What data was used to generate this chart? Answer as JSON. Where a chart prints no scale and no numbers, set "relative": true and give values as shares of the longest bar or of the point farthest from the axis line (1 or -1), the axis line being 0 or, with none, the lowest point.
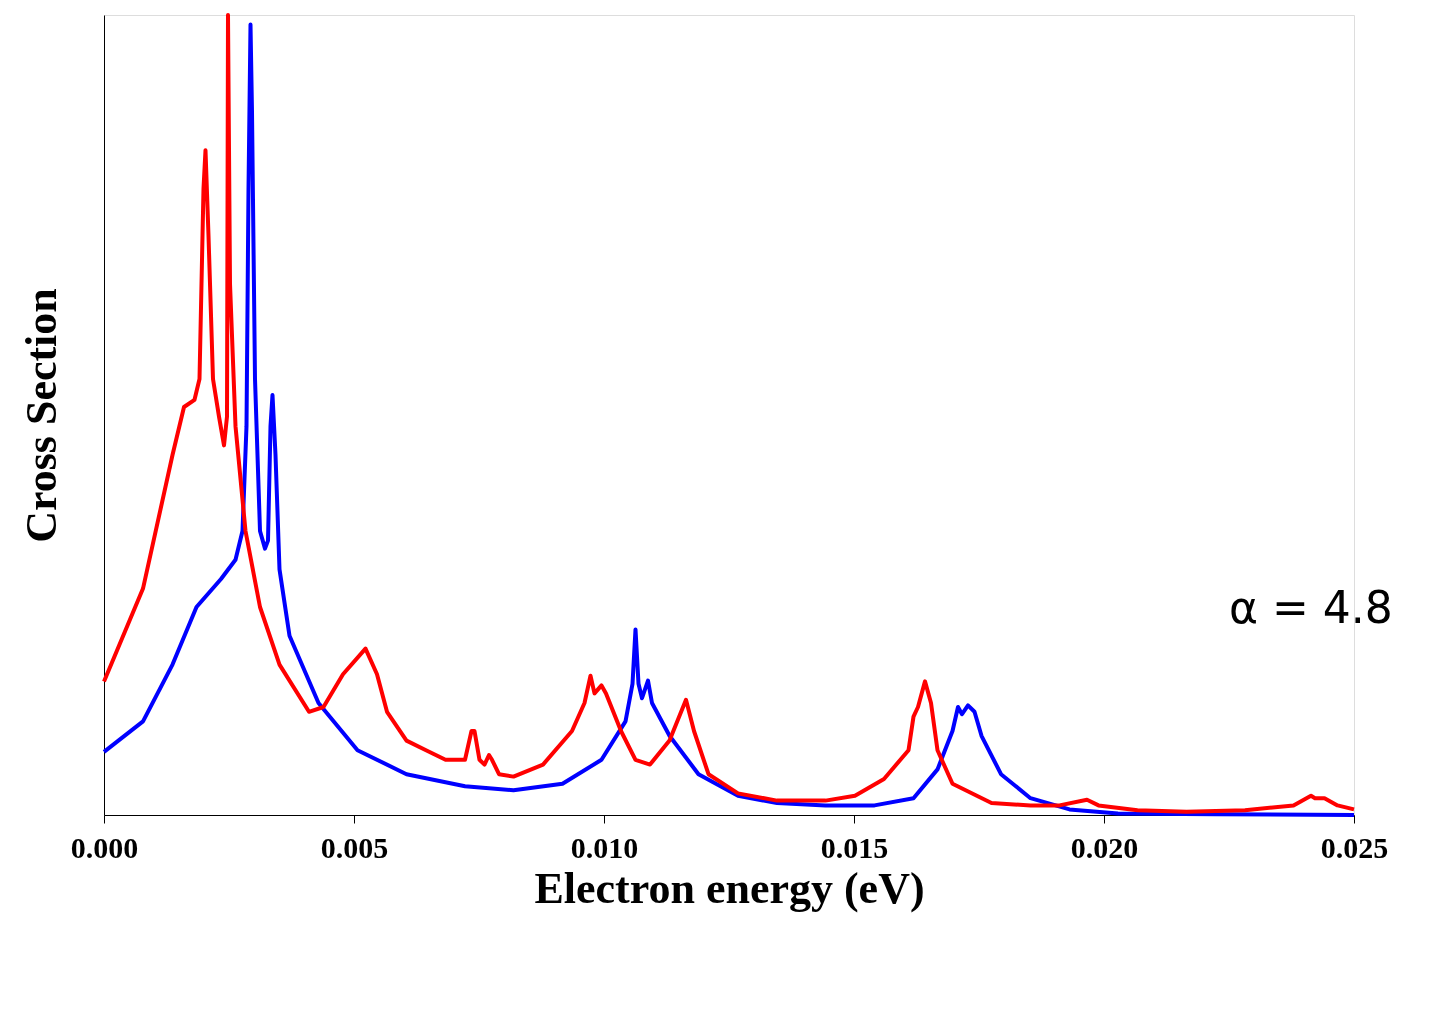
{
  "chart_data": {
    "type": "line",
    "relative": true,
    "xlabel": "Electron energy (eV)",
    "ylabel": "Cross Section",
    "xlim": [
      0,
      0.025
    ],
    "xticks": [
      {
        "value": 0,
        "label": "0.000"
      },
      {
        "value": 0.005,
        "label": "0.005"
      },
      {
        "value": 0.01,
        "label": "0.010"
      },
      {
        "value": 0.015,
        "label": "0.015"
      },
      {
        "value": 0.02,
        "label": "0.020"
      },
      {
        "value": 0.025,
        "label": "0.025"
      }
    ],
    "grid": false,
    "marker": "none",
    "line_style": "solid",
    "annotations": [
      "α = 4.8"
    ],
    "series": [
      {
        "color": "#0000ff",
        "x": [
          0,
          0.00078,
          0.00137,
          0.00185,
          0.00234,
          0.00263,
          0.00277,
          0.00285,
          0.00289,
          0.00293,
          0.00296,
          0.00302,
          0.00312,
          0.00322,
          0.00328,
          0.00333,
          0.00337,
          0.00343,
          0.00351,
          0.00371,
          0.00429,
          0.00507,
          0.00605,
          0.00722,
          0.00819,
          0.00917,
          0.00995,
          0.01043,
          0.01057,
          0.01063,
          0.01069,
          0.01076,
          0.01088,
          0.01096,
          0.01131,
          0.01189,
          0.01268,
          0.01346,
          0.01443,
          0.01541,
          0.01619,
          0.01667,
          0.01697,
          0.01708,
          0.01716,
          0.01728,
          0.01741,
          0.01755,
          0.01794,
          0.01853,
          0.01931,
          0.02028,
          0.02223,
          0.025
        ],
        "values": [
          0.079,
          0.117,
          0.188,
          0.26,
          0.295,
          0.319,
          0.355,
          0.486,
          0.783,
          0.988,
          0.879,
          0.545,
          0.355,
          0.333,
          0.343,
          0.486,
          0.525,
          0.45,
          0.307,
          0.224,
          0.14,
          0.081,
          0.051,
          0.036,
          0.031,
          0.039,
          0.069,
          0.117,
          0.164,
          0.232,
          0.164,
          0.146,
          0.168,
          0.14,
          0.099,
          0.051,
          0.024,
          0.015,
          0.012,
          0.012,
          0.021,
          0.057,
          0.105,
          0.135,
          0.126,
          0.137,
          0.129,
          0.099,
          0.051,
          0.021,
          0.007,
          0.002,
          0.001,
          0
        ]
      },
      {
        "color": "#ff0000",
        "x": [
          0,
          0.00078,
          0.00137,
          0.0016,
          0.00181,
          0.00191,
          0.00199,
          0.00203,
          0.00209,
          0.00218,
          0.0023,
          0.0024,
          0.00246,
          0.00248,
          0.00252,
          0.00263,
          0.00283,
          0.00312,
          0.00351,
          0.0041,
          0.00439,
          0.00478,
          0.00523,
          0.00546,
          0.00566,
          0.00605,
          0.00644,
          0.00683,
          0.00722,
          0.00735,
          0.00741,
          0.00751,
          0.00761,
          0.0077,
          0.00776,
          0.0079,
          0.00819,
          0.00878,
          0.00936,
          0.00961,
          0.00973,
          0.00981,
          0.00995,
          0.01004,
          0.01034,
          0.01063,
          0.01092,
          0.01131,
          0.01164,
          0.0118,
          0.01209,
          0.01268,
          0.01346,
          0.01443,
          0.01502,
          0.0156,
          0.01609,
          0.01619,
          0.01628,
          0.01642,
          0.01654,
          0.01667,
          0.01697,
          0.01775,
          0.01853,
          0.01911,
          0.01966,
          0.01989,
          0.02067,
          0.02165,
          0.02282,
          0.02379,
          0.02414,
          0.02422,
          0.02441,
          0.02467,
          0.025
        ],
        "values": [
          0.167,
          0.283,
          0.45,
          0.51,
          0.519,
          0.545,
          0.783,
          0.831,
          0.724,
          0.545,
          0.498,
          0.462,
          0.498,
          1.0,
          0.664,
          0.486,
          0.355,
          0.26,
          0.188,
          0.129,
          0.135,
          0.176,
          0.208,
          0.176,
          0.129,
          0.093,
          0.081,
          0.069,
          0.069,
          0.105,
          0.105,
          0.069,
          0.063,
          0.075,
          0.069,
          0.051,
          0.048,
          0.063,
          0.105,
          0.14,
          0.174,
          0.152,
          0.162,
          0.152,
          0.105,
          0.069,
          0.063,
          0.093,
          0.144,
          0.105,
          0.051,
          0.027,
          0.018,
          0.018,
          0.024,
          0.045,
          0.081,
          0.123,
          0.135,
          0.167,
          0.14,
          0.081,
          0.039,
          0.015,
          0.012,
          0.012,
          0.019,
          0.012,
          0.006,
          0.004,
          0.006,
          0.012,
          0.024,
          0.021,
          0.021,
          0.012,
          0.007
        ]
      }
    ]
  }
}
